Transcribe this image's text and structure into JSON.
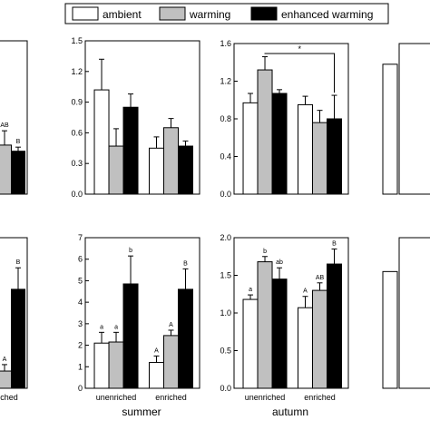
{
  "legend": [
    {
      "name": "ambient",
      "color": "#ffffff"
    },
    {
      "name": "warming",
      "color": "#c0c0c0"
    },
    {
      "name": "enhanced warming",
      "color": "#000000"
    }
  ],
  "seasons": [
    "summer",
    "autumn"
  ],
  "chart_data": [
    {
      "type": "bar",
      "panel": "top-left (partial)",
      "categories": [
        "",
        ""
      ],
      "ylim": [
        0,
        1.5
      ],
      "yticks": [],
      "show_xlabels": false,
      "series": [
        {
          "values": [
            null,
            0.48
          ],
          "errors": [
            0,
            0.14
          ],
          "labels": [
            "",
            "AB"
          ]
        },
        {
          "values": [
            null,
            0.42
          ],
          "errors": [
            0,
            0.04
          ],
          "labels": [
            "",
            "B"
          ]
        }
      ]
    },
    {
      "type": "bar",
      "panel": "top summer",
      "categories": [
        "unenriched",
        "enriched"
      ],
      "ylim": [
        0,
        1.5
      ],
      "yticks": [
        "0.0",
        "0.3",
        "0.6",
        "0.9",
        "1.2",
        "1.5"
      ],
      "show_xlabels": false,
      "series": [
        {
          "values": [
            1.02,
            0.45
          ],
          "errors": [
            0.3,
            0.11
          ],
          "labels": [
            "",
            ""
          ]
        },
        {
          "values": [
            0.47,
            0.65
          ],
          "errors": [
            0.17,
            0.09
          ],
          "labels": [
            "",
            ""
          ]
        },
        {
          "values": [
            0.85,
            0.47
          ],
          "errors": [
            0.13,
            0.05
          ],
          "labels": [
            "",
            ""
          ]
        }
      ]
    },
    {
      "type": "bar",
      "panel": "top autumn",
      "categories": [
        "unenriched",
        "enriched"
      ],
      "ylim": [
        0,
        1.6
      ],
      "yticks": [
        "0.0",
        "0.4",
        "0.8",
        "1.2",
        "1.6"
      ],
      "show_xlabels": false,
      "annotations": [
        {
          "text": "*"
        }
      ],
      "series": [
        {
          "values": [
            0.97,
            0.95
          ],
          "errors": [
            0.1,
            0.09
          ],
          "labels": [
            "",
            ""
          ]
        },
        {
          "values": [
            1.32,
            0.76
          ],
          "errors": [
            0.14,
            0.13
          ],
          "labels": [
            "",
            ""
          ]
        },
        {
          "values": [
            1.07,
            0.8
          ],
          "errors": [
            0.04,
            0.25
          ],
          "labels": [
            "",
            ""
          ]
        }
      ]
    },
    {
      "type": "bar",
      "panel": "top-right (partial)",
      "categories": [
        "",
        ""
      ],
      "ylim": [
        0,
        1.6
      ],
      "yticks": [],
      "show_xlabels": false,
      "series": [
        {
          "values": [
            1.38,
            null
          ],
          "errors": [
            0,
            0
          ],
          "labels": [
            "",
            ""
          ]
        }
      ]
    },
    {
      "type": "bar",
      "panel": "bottom-left (partial)",
      "categories": [
        "",
        "enriched"
      ],
      "xlabels_visible": [
        "",
        "nriched"
      ],
      "ylim": [
        0,
        7
      ],
      "yticks": [],
      "show_xlabels": true,
      "series": [
        {
          "values": [
            null,
            0.8
          ],
          "errors": [
            0,
            0.3
          ],
          "labels": [
            "",
            "A"
          ]
        },
        {
          "values": [
            null,
            4.6
          ],
          "errors": [
            0,
            1.0
          ],
          "labels": [
            "",
            "B"
          ]
        }
      ]
    },
    {
      "type": "bar",
      "panel": "bottom summer",
      "categories": [
        "unenriched",
        "enriched"
      ],
      "ylim": [
        0,
        7
      ],
      "yticks": [
        "0",
        "1",
        "2",
        "3",
        "4",
        "5",
        "6",
        "7"
      ],
      "show_xlabels": true,
      "series": [
        {
          "values": [
            2.1,
            1.2
          ],
          "errors": [
            0.5,
            0.3
          ],
          "labels": [
            "a",
            "A"
          ]
        },
        {
          "values": [
            2.15,
            2.45
          ],
          "errors": [
            0.45,
            0.25
          ],
          "labels": [
            "a",
            "A"
          ]
        },
        {
          "values": [
            4.85,
            4.6
          ],
          "errors": [
            1.3,
            0.95
          ],
          "labels": [
            "b",
            "B"
          ]
        }
      ]
    },
    {
      "type": "bar",
      "panel": "bottom autumn",
      "categories": [
        "unenriched",
        "enriched"
      ],
      "ylim": [
        0,
        2.0
      ],
      "yticks": [
        "0.0",
        "0.5",
        "1.0",
        "1.5",
        "2.0"
      ],
      "show_xlabels": true,
      "series": [
        {
          "values": [
            1.18,
            1.07
          ],
          "errors": [
            0.06,
            0.15
          ],
          "labels": [
            "a",
            "A"
          ]
        },
        {
          "values": [
            1.68,
            1.3
          ],
          "errors": [
            0.07,
            0.1
          ],
          "labels": [
            "b",
            "AB"
          ]
        },
        {
          "values": [
            1.45,
            1.65
          ],
          "errors": [
            0.15,
            0.2
          ],
          "labels": [
            "ab",
            "B"
          ]
        }
      ]
    },
    {
      "type": "bar",
      "panel": "bottom-right (partial)",
      "categories": [
        "",
        ""
      ],
      "ylim": [
        0,
        2.0
      ],
      "yticks": [],
      "show_xlabels": false,
      "series": [
        {
          "values": [
            1.55,
            null
          ],
          "errors": [
            0,
            0
          ],
          "labels": [
            "",
            ""
          ]
        }
      ]
    }
  ]
}
